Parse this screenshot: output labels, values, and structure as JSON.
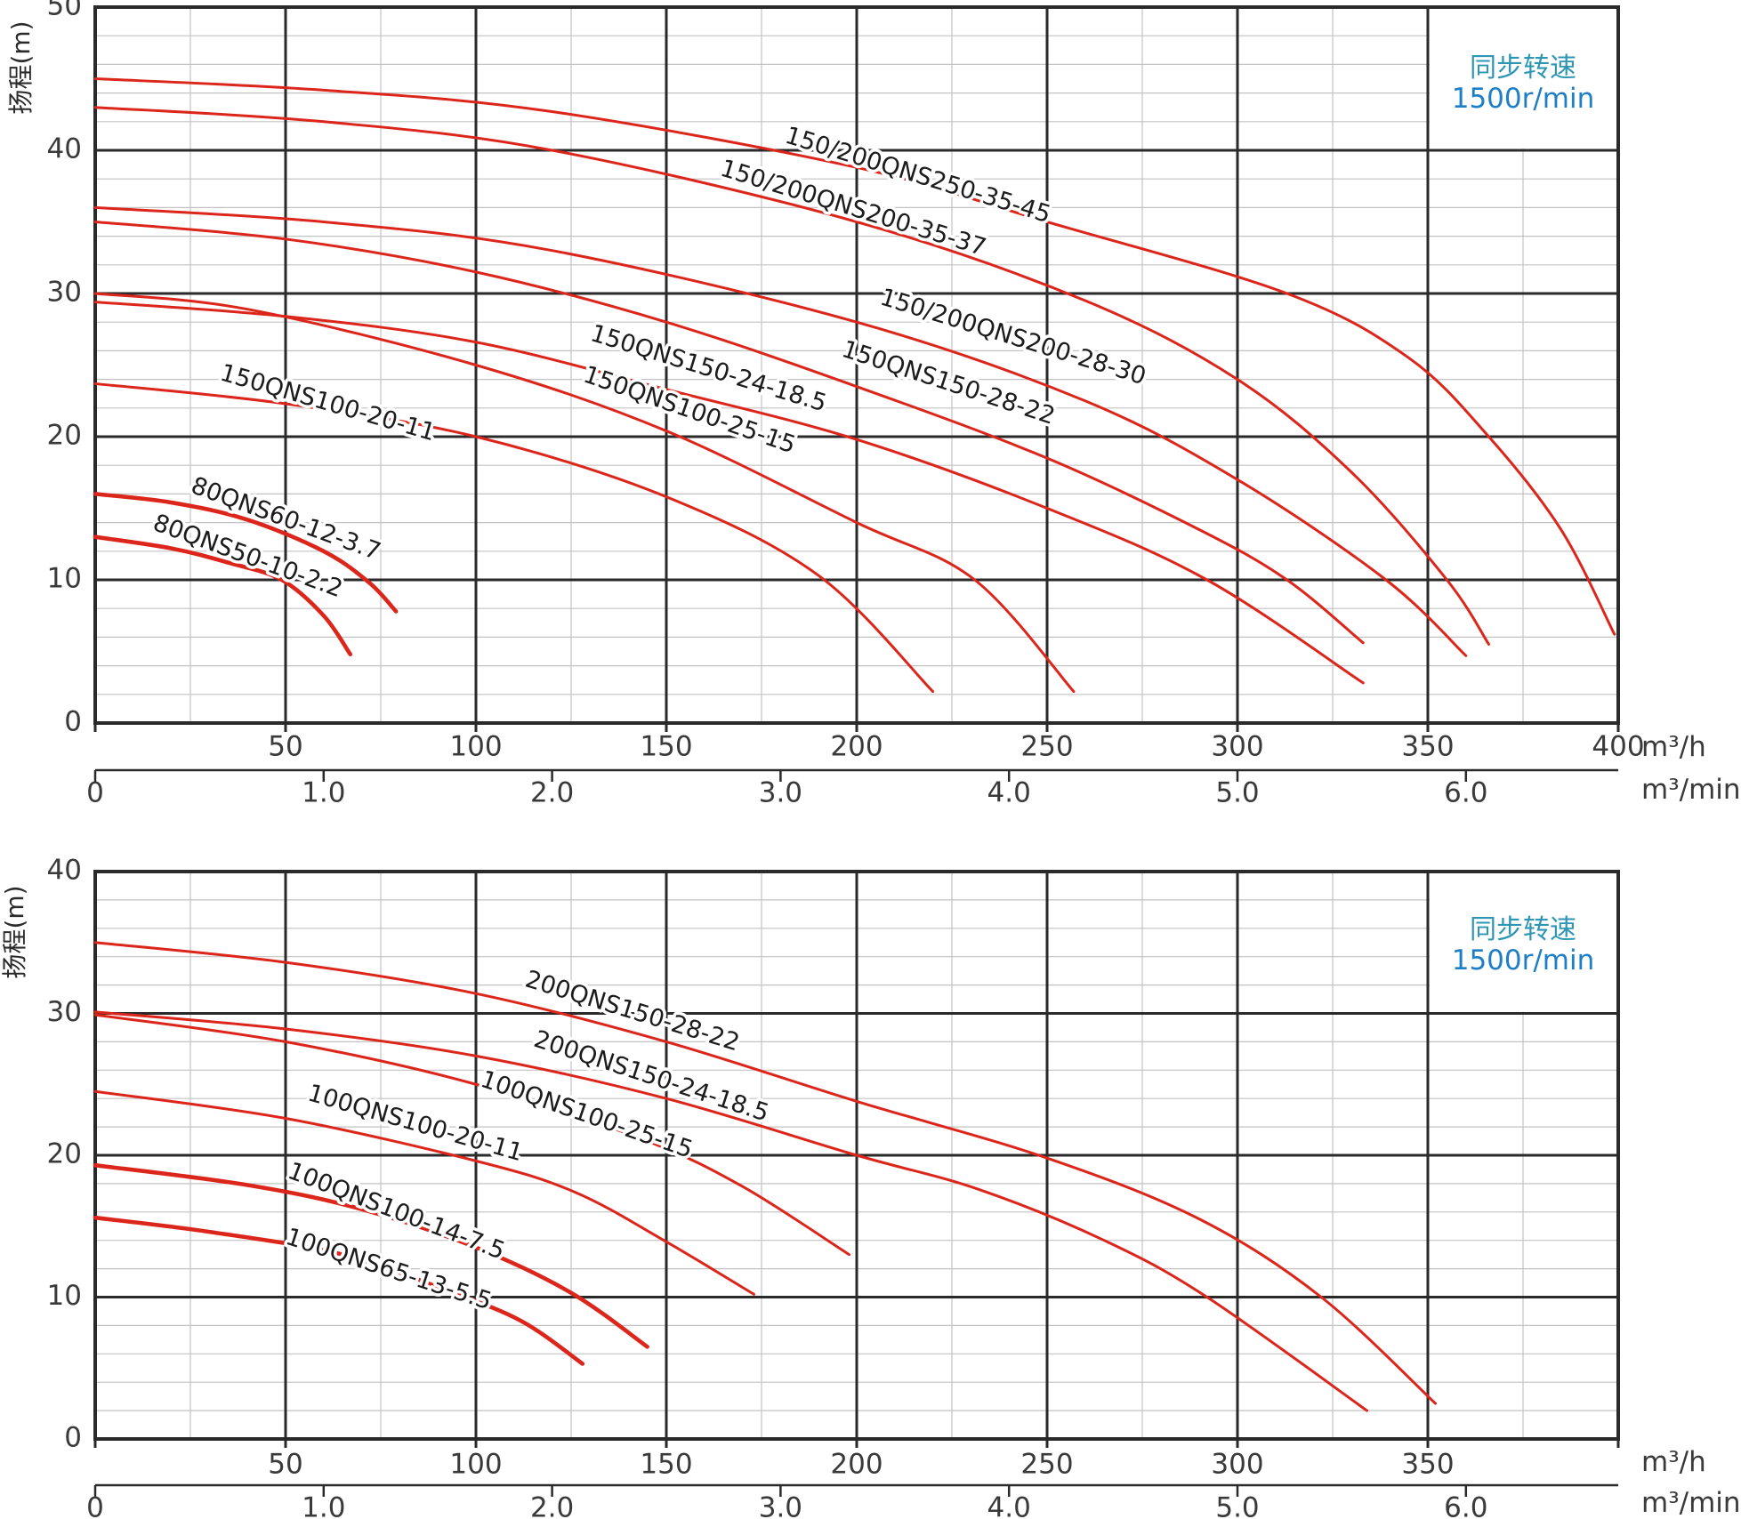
{
  "page_bg": "#ffffff",
  "colors": {
    "curve_red": "#dc261b",
    "grid_major": "#2a2a2a",
    "grid_minor": "#c3c3c3",
    "tick_text": "#3a3a3a",
    "label_text": "#1c1c1c",
    "speed_title_blue": "#2e96b4",
    "speed_value_blue": "#1e7ec6"
  },
  "chart_data": [
    {
      "type": "line",
      "ylabel": "扬程(m)",
      "speed_note": {
        "line1": "同步转速",
        "line2": "1500r/min"
      },
      "x_axis": {
        "unit_primary": "m³/h",
        "unit_secondary": "m³/min",
        "max": 400,
        "major_step": 50,
        "minor_step": 25,
        "ticks_m3h": [
          50,
          100,
          150,
          200,
          250,
          300,
          350,
          400
        ],
        "ticks_m3min": [
          "0",
          "1.0",
          "2.0",
          "3.0",
          "4.0",
          "5.0",
          "6.0"
        ]
      },
      "y_axis": {
        "max": 50,
        "major_step": 10,
        "minor_step": 2,
        "ticks": [
          0,
          10,
          20,
          30,
          40,
          50
        ]
      },
      "grid": true,
      "series": [
        {
          "name": "150/200QNS250-35-45",
          "thick": false,
          "points": [
            [
              0,
              45
            ],
            [
              60,
              44.2
            ],
            [
              120,
              42.7
            ],
            [
              200,
              38.8
            ],
            [
              250,
              35
            ],
            [
              313,
              30
            ],
            [
              345,
              25.5
            ],
            [
              366,
              20
            ],
            [
              385,
              13.5
            ],
            [
              399,
              6.2
            ]
          ],
          "label": {
            "q": 216,
            "h": 38.2,
            "rot": 17
          }
        },
        {
          "name": "150/200QNS200-35-37",
          "thick": false,
          "points": [
            [
              0,
              43
            ],
            [
              60,
              42
            ],
            [
              120,
              40
            ],
            [
              200,
              35
            ],
            [
              260,
              29.5
            ],
            [
              300,
              24
            ],
            [
              330,
              17.5
            ],
            [
              355,
              10
            ],
            [
              366,
              5.5
            ]
          ],
          "label": {
            "q": 199,
            "h": 35.9,
            "rot": 17
          }
        },
        {
          "name": "150/200QNS200-28-30",
          "thick": false,
          "points": [
            [
              0,
              36
            ],
            [
              60,
              35
            ],
            [
              120,
              33
            ],
            [
              200,
              28
            ],
            [
              260,
              22.5
            ],
            [
              300,
              17
            ],
            [
              339,
              10
            ],
            [
              360,
              4.7
            ]
          ],
          "label": {
            "q": 241,
            "h": 26.9,
            "rot": 17
          }
        },
        {
          "name": "150QNS150-28-22",
          "thick": false,
          "points": [
            [
              0,
              35
            ],
            [
              50,
              33.8
            ],
            [
              100,
              31.5
            ],
            [
              150,
              28
            ],
            [
              200,
              23.5
            ],
            [
              250,
              18.5
            ],
            [
              290,
              13.5
            ],
            [
              313,
              10
            ],
            [
              333,
              5.6
            ]
          ],
          "label": {
            "q": 224,
            "h": 23.7,
            "rot": 18
          }
        },
        {
          "name": "150QNS150-24-18.5",
          "thick": false,
          "points": [
            [
              0,
              29.4
            ],
            [
              50,
              28.4
            ],
            [
              100,
              26.6
            ],
            [
              150,
              23.3
            ],
            [
              200,
              19.8
            ],
            [
              250,
              15
            ],
            [
              292,
              10
            ],
            [
              333,
              2.8
            ]
          ],
          "label": {
            "q": 161,
            "h": 24.7,
            "rot": 17
          }
        },
        {
          "name": "150QNS100-25-15",
          "thick": false,
          "points": [
            [
              0,
              30
            ],
            [
              40,
              28.9
            ],
            [
              100,
              25
            ],
            [
              150,
              20.4
            ],
            [
              200,
              14
            ],
            [
              231,
              10
            ],
            [
              257,
              2.2
            ]
          ],
          "label": {
            "q": 156,
            "h": 21.8,
            "rot": 19
          }
        },
        {
          "name": "150QNS100-20-11",
          "thick": false,
          "points": [
            [
              0,
              23.7
            ],
            [
              50,
              22.3
            ],
            [
              100,
              20
            ],
            [
              150,
              15.8
            ],
            [
              190,
              10.3
            ],
            [
              220,
              2.2
            ]
          ],
          "label": {
            "q": 61,
            "h": 22.3,
            "rot": 16
          }
        },
        {
          "name": "80QNS60-12-3.7",
          "thick": true,
          "points": [
            [
              0,
              16
            ],
            [
              20,
              15.4
            ],
            [
              40,
              14.2
            ],
            [
              60,
              12
            ],
            [
              72,
              9.8
            ],
            [
              79,
              7.8
            ]
          ],
          "label": {
            "q": 50,
            "h": 14.2,
            "rot": 20
          }
        },
        {
          "name": "80QNS50-10-2.2",
          "thick": true,
          "points": [
            [
              0,
              13
            ],
            [
              20,
              12.2
            ],
            [
              35,
              11.2
            ],
            [
              49,
              10
            ],
            [
              60,
              7.5
            ],
            [
              67,
              4.8
            ]
          ],
          "label": {
            "q": 40,
            "h": 11.6,
            "rot": 20
          }
        }
      ]
    },
    {
      "type": "line",
      "ylabel": "扬程(m)",
      "speed_note": {
        "line1": "同步转速",
        "line2": "1500r/min"
      },
      "x_axis": {
        "unit_primary": "m³/h",
        "unit_secondary": "m³/min",
        "max": 400,
        "major_step": 50,
        "minor_step": 25,
        "ticks_m3h": [
          50,
          100,
          150,
          200,
          250,
          300,
          350
        ],
        "ticks_m3min": [
          "0",
          "1.0",
          "2.0",
          "3.0",
          "4.0",
          "5.0",
          "6.0"
        ]
      },
      "y_axis": {
        "max": 40,
        "major_step": 10,
        "minor_step": 2,
        "ticks": [
          0,
          10,
          20,
          30,
          40
        ]
      },
      "grid": true,
      "series": [
        {
          "name": "200QNS150-28-22",
          "thick": false,
          "points": [
            [
              0,
              35
            ],
            [
              50,
              33.6
            ],
            [
              100,
              31.4
            ],
            [
              150,
              28
            ],
            [
              200,
              23.8
            ],
            [
              250,
              19.8
            ],
            [
              290,
              15.5
            ],
            [
              322,
              10
            ],
            [
              352,
              2.5
            ]
          ],
          "label": {
            "q": 141,
            "h": 30.1,
            "rot": 17
          }
        },
        {
          "name": "200QNS150-24-18.5",
          "thick": false,
          "points": [
            [
              0,
              30.1
            ],
            [
              50,
              28.9
            ],
            [
              100,
              27
            ],
            [
              150,
              24
            ],
            [
              200,
              20
            ],
            [
              232,
              17.6
            ],
            [
              265,
              14
            ],
            [
              292,
              10
            ],
            [
              334,
              2
            ]
          ],
          "label": {
            "q": 146,
            "h": 25.5,
            "rot": 18
          }
        },
        {
          "name": "100QNS100-25-15",
          "thick": false,
          "points": [
            [
              0,
              29.9
            ],
            [
              50,
              28
            ],
            [
              100,
              25
            ],
            [
              144,
              21.1
            ],
            [
              170,
              17.8
            ],
            [
              198,
              13
            ]
          ],
          "label": {
            "q": 129,
            "h": 22.8,
            "rot": 19
          }
        },
        {
          "name": "100QNS100-20-11",
          "thick": false,
          "points": [
            [
              0,
              24.5
            ],
            [
              50,
              22.6
            ],
            [
              100,
              19.6
            ],
            [
              126,
              17.4
            ],
            [
              150,
              13.9
            ],
            [
              173,
              10.2
            ]
          ],
          "label": {
            "q": 84,
            "h": 22.2,
            "rot": 16
          }
        },
        {
          "name": "100QNS100-14-7.5",
          "thick": true,
          "points": [
            [
              0,
              19.3
            ],
            [
              40,
              17.9
            ],
            [
              70,
              16.2
            ],
            [
              100,
              13.5
            ],
            [
              125,
              10.3
            ],
            [
              145,
              6.5
            ]
          ],
          "label": {
            "q": 79,
            "h": 16.0,
            "rot": 21
          }
        },
        {
          "name": "100QNS65-13-5.5",
          "thick": true,
          "points": [
            [
              0,
              15.6
            ],
            [
              30,
              14.6
            ],
            [
              65,
              13
            ],
            [
              92,
              10.5
            ],
            [
              112,
              8.3
            ],
            [
              128,
              5.3
            ]
          ],
          "label": {
            "q": 77,
            "h": 11.9,
            "rot": 18
          }
        }
      ]
    }
  ]
}
